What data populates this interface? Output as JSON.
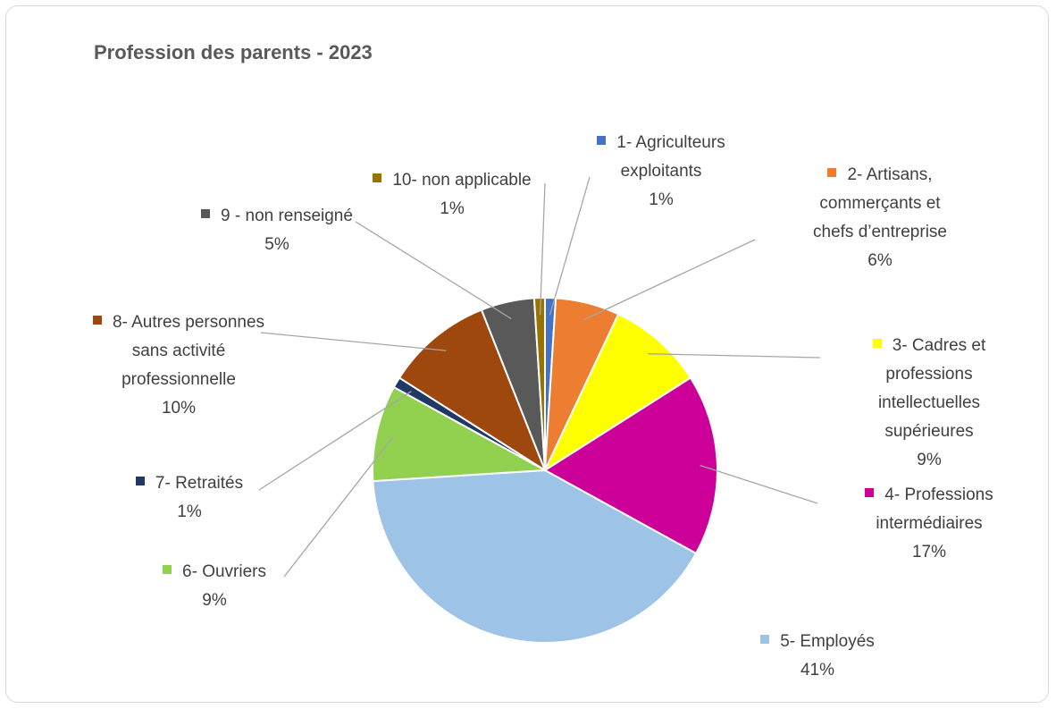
{
  "chart_data": {
    "type": "pie",
    "title": "Profession des parents - 2023",
    "categories": [
      "1- Agriculteurs exploitants",
      "2- Artisans, commerçants et chefs d’entreprise",
      "3- Cadres et professions intellectuelles supérieures",
      "4- Professions intermédiaires",
      "5- Employés",
      "6- Ouvriers",
      "7- Retraités",
      "8- Autres personnes sans activité professionnelle",
      "9 - non renseigné",
      "10- non applicable"
    ],
    "values": [
      1,
      6,
      9,
      17,
      41,
      9,
      1,
      10,
      5,
      1
    ],
    "value_labels": [
      "1%",
      "6%",
      "9%",
      "17%",
      "41%",
      "9%",
      "1%",
      "10%",
      "5%",
      "1%"
    ],
    "colors": [
      "#4472c4",
      "#ed7d31",
      "#ffff00",
      "#cc0099",
      "#9dc3e6",
      "#92d050",
      "#1f3864",
      "#9e480e",
      "#595959",
      "#997300"
    ]
  }
}
